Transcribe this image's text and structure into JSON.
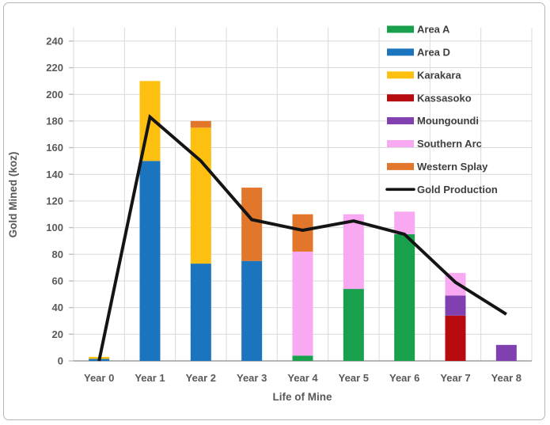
{
  "chart_data": {
    "type": "bar",
    "stacked": true,
    "title": "",
    "xlabel": "Life of Mine",
    "ylabel": "Gold Mined (koz)",
    "categories": [
      "Year 0",
      "Year 1",
      "Year 2",
      "Year 3",
      "Year 4",
      "Year 5",
      "Year 6",
      "Year 7",
      "Year 8"
    ],
    "series": [
      {
        "name": "Area A",
        "color": "#18A04D",
        "values": [
          0,
          0,
          0,
          0,
          4,
          54,
          95,
          0,
          0
        ]
      },
      {
        "name": "Area D",
        "color": "#1B74BE",
        "values": [
          1.5,
          150,
          73,
          75,
          0,
          0,
          0,
          0,
          0
        ]
      },
      {
        "name": "Karakara",
        "color": "#FDC011",
        "values": [
          1.5,
          60,
          102,
          0,
          0,
          0,
          0,
          0,
          0
        ]
      },
      {
        "name": "Kassasoko",
        "color": "#B70B0F",
        "values": [
          0,
          0,
          0,
          0,
          0,
          0,
          0,
          34,
          0
        ]
      },
      {
        "name": "Moungoundi",
        "color": "#8040B0",
        "values": [
          0,
          0,
          0,
          0,
          0,
          0,
          0,
          15,
          12
        ]
      },
      {
        "name": "Southern Arc",
        "color": "#F9A8F2",
        "values": [
          0,
          0,
          0,
          0,
          78,
          56,
          17,
          17,
          0
        ]
      },
      {
        "name": "Western Splay",
        "color": "#E2762B",
        "values": [
          0,
          0,
          5,
          55,
          28,
          0,
          0,
          0,
          0
        ]
      }
    ],
    "line_series": {
      "name": "Gold Production",
      "color": "#141414",
      "values": [
        0,
        183,
        150,
        106,
        98,
        105,
        95,
        59,
        35
      ]
    },
    "totals": [
      3,
      210,
      180,
      130,
      110,
      110,
      112,
      66,
      12
    ],
    "ylim": [
      0,
      250
    ],
    "yticks": [
      0,
      20,
      40,
      60,
      80,
      100,
      120,
      140,
      160,
      180,
      200,
      220,
      240
    ],
    "grid": true,
    "legend_position": "top-right",
    "style": {
      "grid_color": "#D9D9D9",
      "baseline_color": "#9E9E9E",
      "tick_color": "#BFBFBF",
      "tick_label_color": "#595959",
      "legend_label_color": "#3F3F3F",
      "background": "#FFFFFF",
      "frame_border_color": "#B5B5B5"
    }
  }
}
